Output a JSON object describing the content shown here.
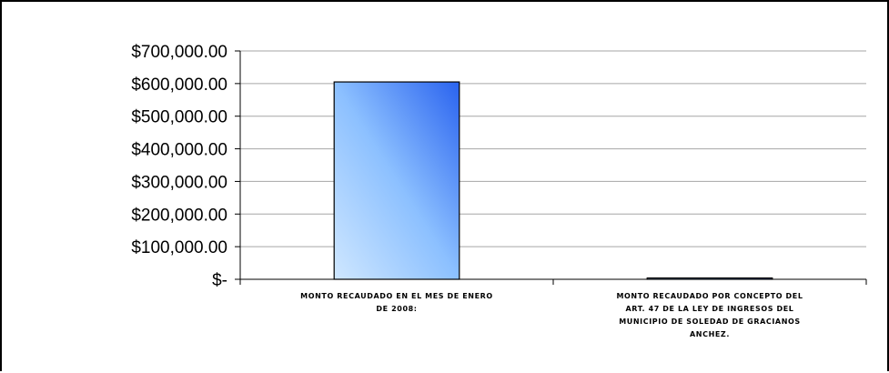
{
  "chart_data": {
    "type": "bar",
    "categories": [
      [
        "MONTO RECAUDADO EN EL MES DE ENERO",
        "DE 2008:"
      ],
      [
        "MONTO RECAUDADO POR CONCEPTO DEL",
        "ART. 47 DE LA LEY DE INGRESOS DEL",
        "MUNICIPIO DE SOLEDAD DE GRACIANOS",
        "ANCHEZ."
      ]
    ],
    "values": [
      605000,
      4000
    ],
    "ylim": [
      0,
      700000
    ],
    "yticks": [
      0,
      100000,
      200000,
      300000,
      400000,
      500000,
      600000,
      700000
    ],
    "ytick_labels": [
      "$-",
      "$100,000.00",
      "$200,000.00",
      "$300,000.00",
      "$400,000.00",
      "$500,000.00",
      "$600,000.00",
      "$700,000.00"
    ],
    "grid": true,
    "legend": false,
    "colors": {
      "bar_light": "#bfe0ff",
      "bar_mid": "#7fb4ff",
      "bar_dark": "#2f6bf0",
      "grid": "#a6a6a6",
      "axis": "#000000"
    }
  }
}
